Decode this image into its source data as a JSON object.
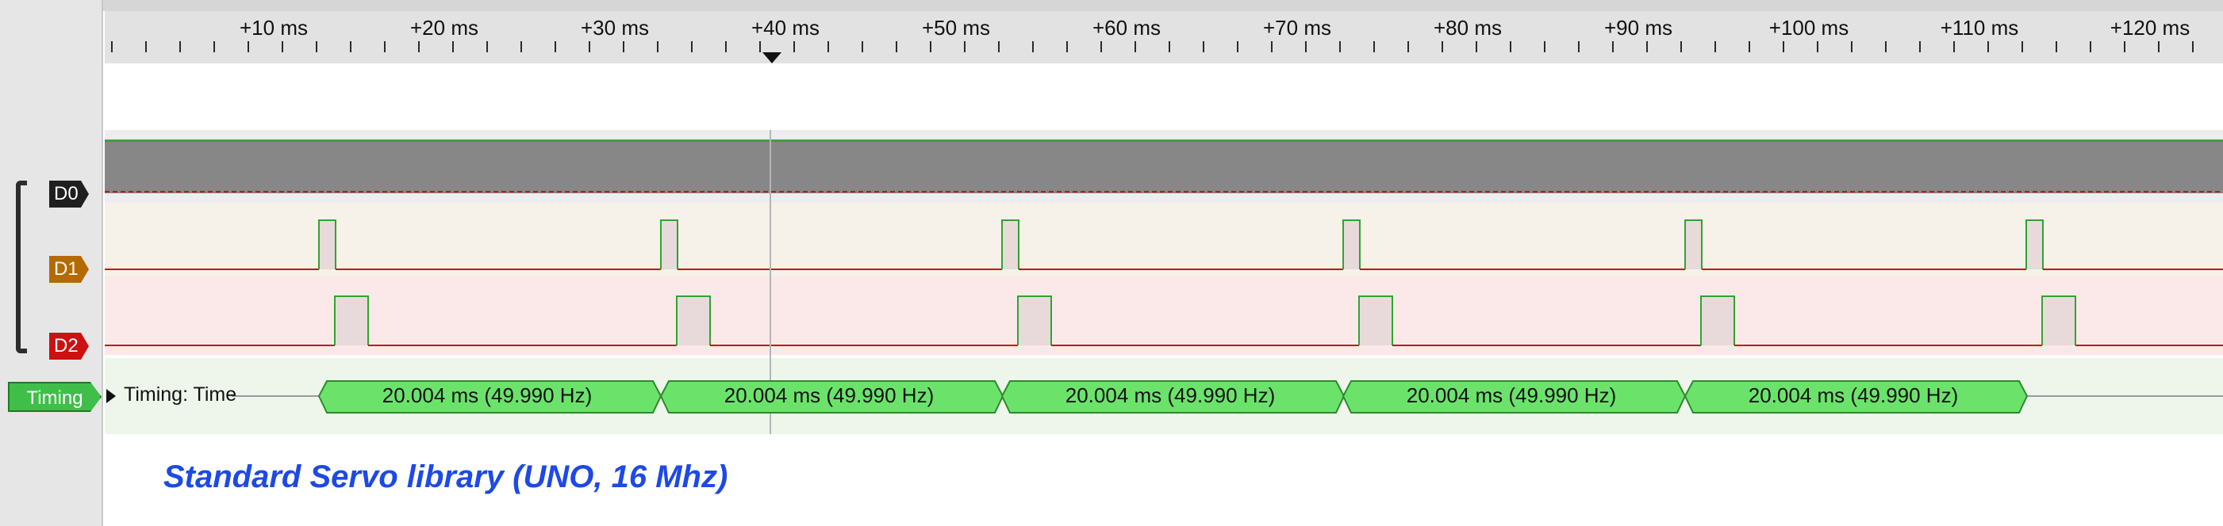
{
  "ruler": {
    "labels": [
      "+10 ms",
      "+20 ms",
      "+30 ms",
      "+40 ms",
      "+50 ms",
      "+60 ms",
      "+70 ms",
      "+80 ms",
      "+90 ms",
      "+100 ms",
      "+110 ms",
      "+120 ms"
    ]
  },
  "channels": [
    {
      "name": "D0",
      "color": "#1f1f1f"
    },
    {
      "name": "D1",
      "color": "#b56a00"
    },
    {
      "name": "D2",
      "color": "#cc1111"
    }
  ],
  "timing": {
    "tag": "Timing",
    "name": "Timing: Time",
    "measurements": [
      "20.004 ms (49.990 Hz)",
      "20.004 ms (49.990 Hz)",
      "20.004 ms (49.990 Hz)",
      "20.004 ms (49.990 Hz)",
      "20.004 ms (49.990 Hz)"
    ]
  },
  "caption": "Standard Servo library (UNO, 16 Mhz)",
  "colors": {
    "accent": "#1d49e6",
    "timing_fill": "#6be36b",
    "signal_line": "#cc1111",
    "signal_high": "#2fa52f"
  }
}
